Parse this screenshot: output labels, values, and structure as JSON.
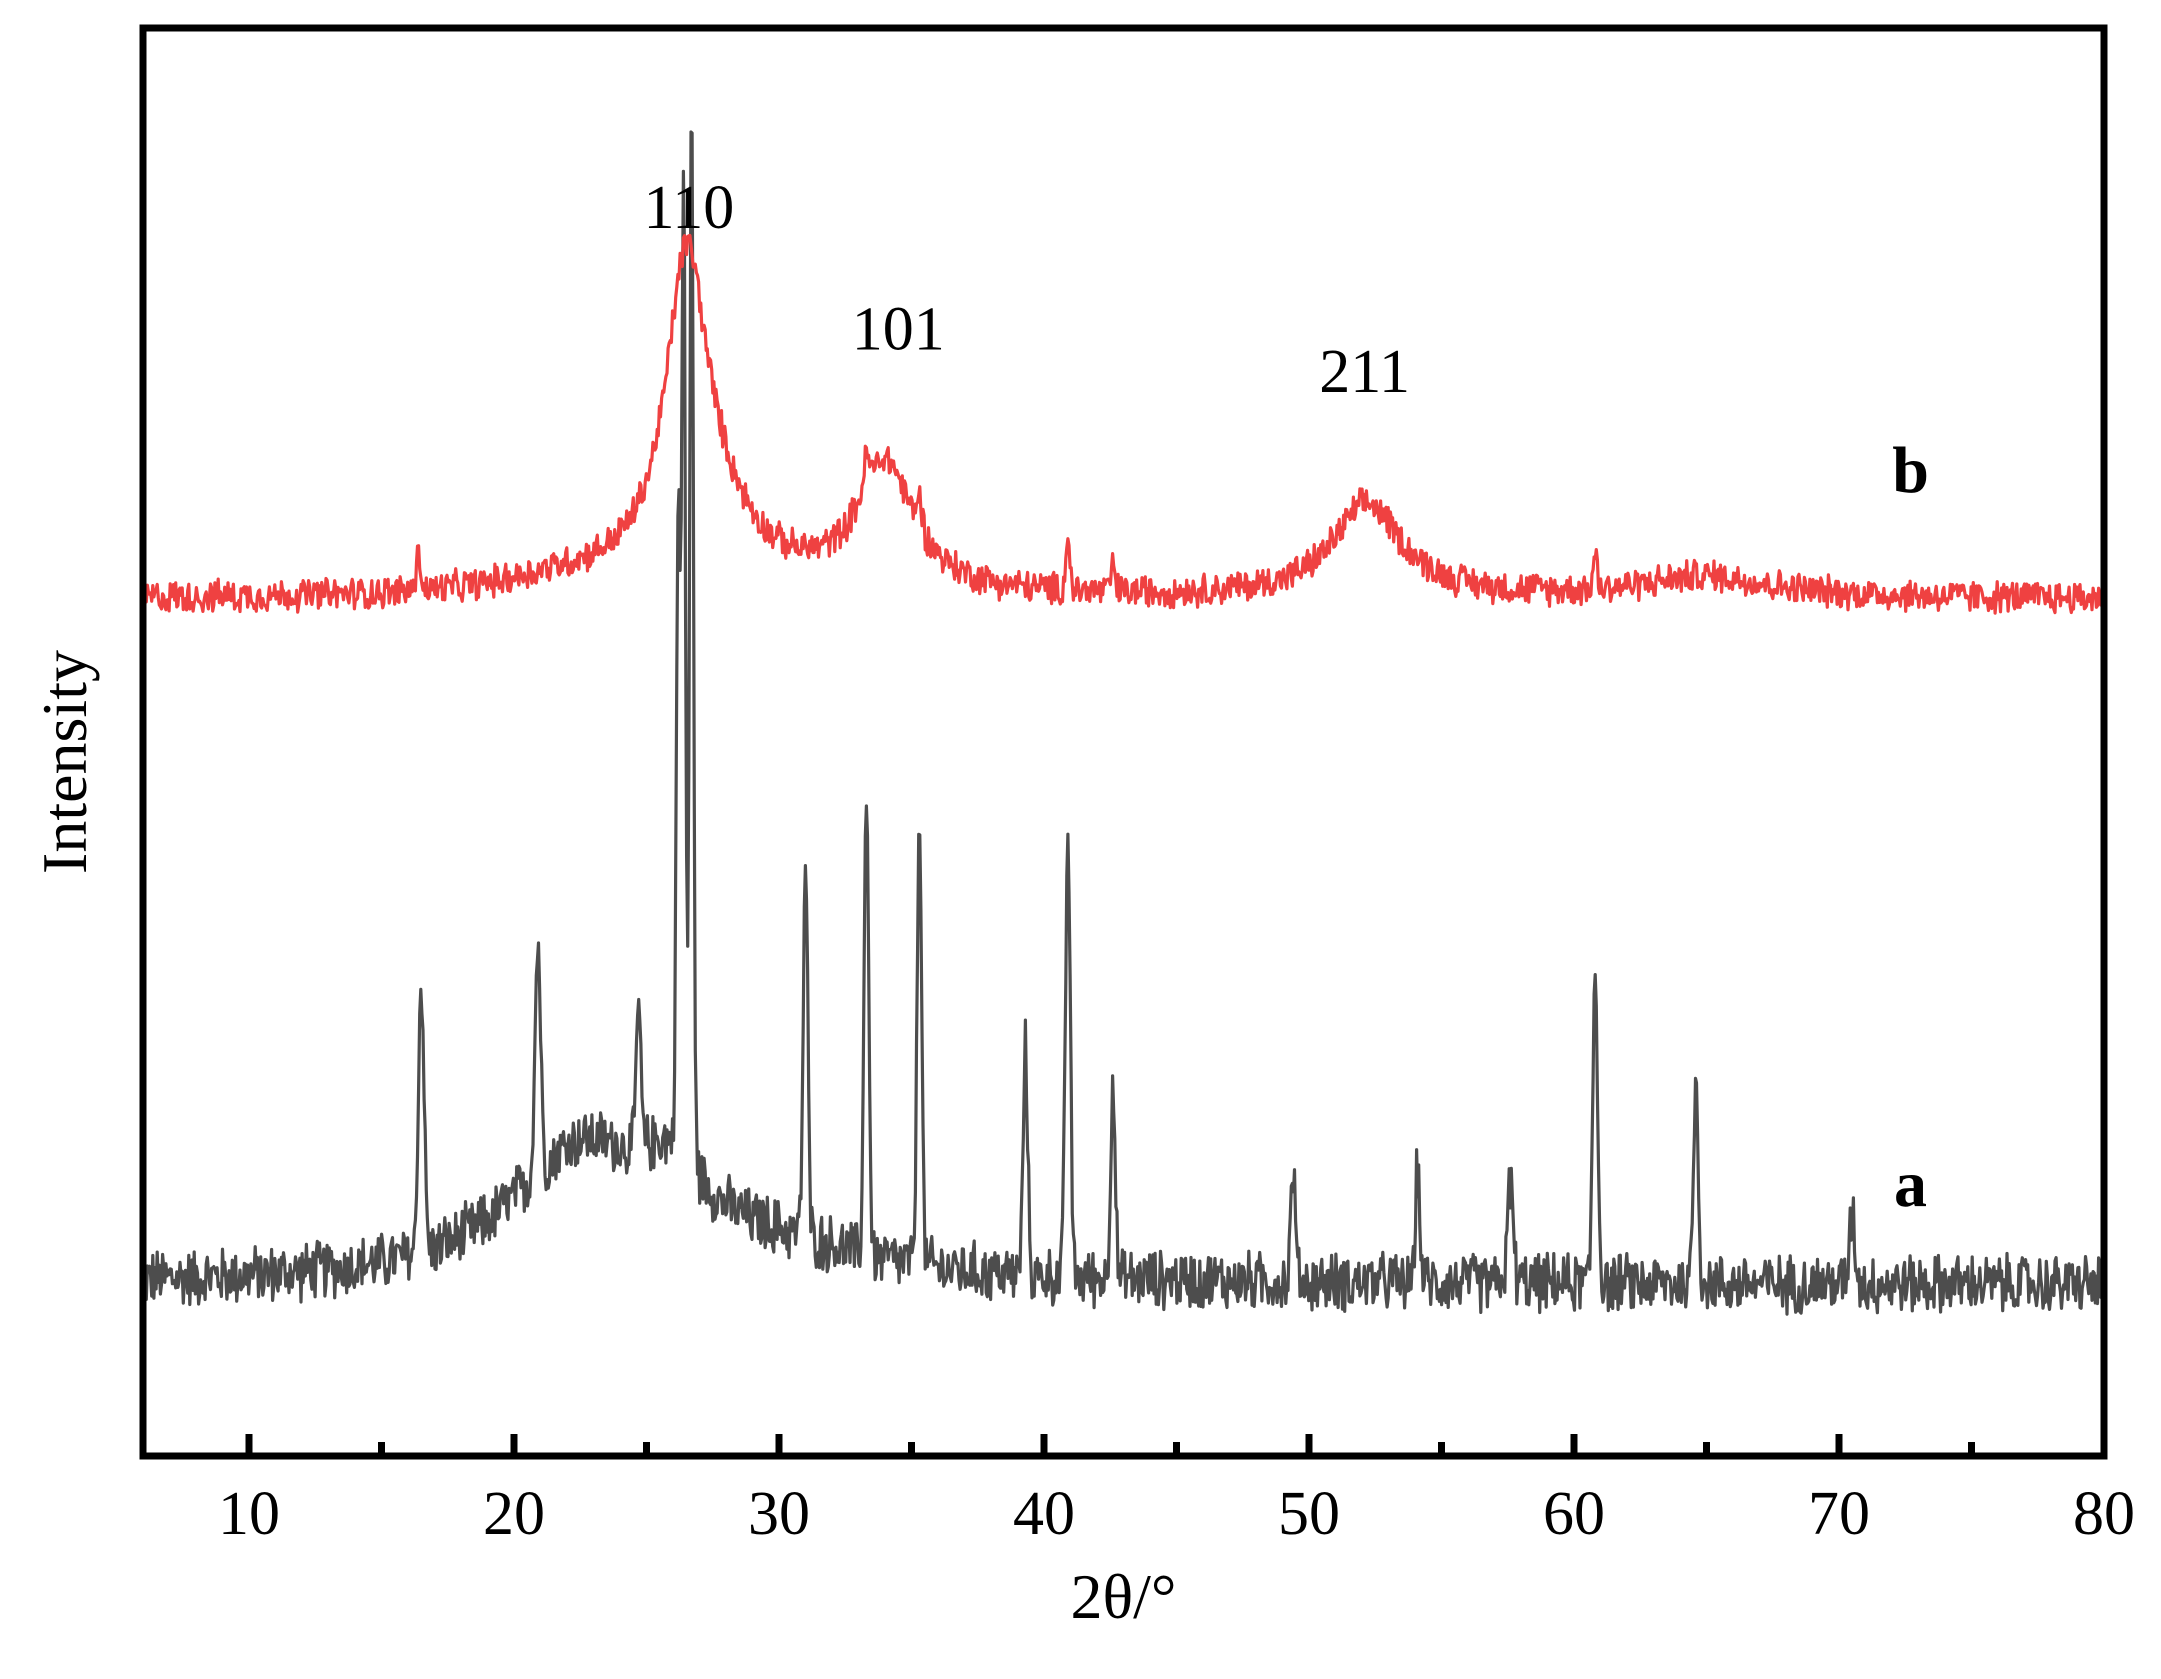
{
  "chart_data": {
    "type": "line",
    "xlabel": "2θ/°",
    "ylabel": "Intensity",
    "xlim": [
      6,
      80
    ],
    "xticks": [
      10,
      20,
      30,
      40,
      50,
      60,
      70,
      80
    ],
    "y_ticks_shown": false,
    "grid": false,
    "legend": "none",
    "series": [
      {
        "name": "a",
        "color": "#4d4d4d",
        "baseline": 0.12,
        "offset": 0.0,
        "noise": 0.018,
        "broad": [
          {
            "x": 22.5,
            "h": 0.09,
            "w": 3.2
          },
          {
            "x": 26.0,
            "h": 0.05,
            "w": 1.5
          },
          {
            "x": 30.0,
            "h": 0.02,
            "w": 4.0
          }
        ],
        "peaks": [
          {
            "x": 16.5,
            "h": 0.19,
            "w": 0.15
          },
          {
            "x": 20.9,
            "h": 0.16,
            "w": 0.15
          },
          {
            "x": 24.7,
            "h": 0.1,
            "w": 0.12
          },
          {
            "x": 26.2,
            "h": 0.45,
            "w": 0.1
          },
          {
            "x": 26.4,
            "h": 0.68,
            "w": 0.1
          },
          {
            "x": 26.7,
            "h": 0.74,
            "w": 0.1
          },
          {
            "x": 31.0,
            "h": 0.26,
            "w": 0.12
          },
          {
            "x": 33.3,
            "h": 0.33,
            "w": 0.12
          },
          {
            "x": 35.3,
            "h": 0.32,
            "w": 0.12
          },
          {
            "x": 39.3,
            "h": 0.16,
            "w": 0.12
          },
          {
            "x": 40.9,
            "h": 0.31,
            "w": 0.13
          },
          {
            "x": 42.6,
            "h": 0.14,
            "w": 0.12
          },
          {
            "x": 49.4,
            "h": 0.08,
            "w": 0.12
          },
          {
            "x": 54.1,
            "h": 0.08,
            "w": 0.12
          },
          {
            "x": 57.6,
            "h": 0.07,
            "w": 0.15
          },
          {
            "x": 60.8,
            "h": 0.22,
            "w": 0.13
          },
          {
            "x": 64.6,
            "h": 0.14,
            "w": 0.13
          },
          {
            "x": 70.5,
            "h": 0.05,
            "w": 0.15
          }
        ]
      },
      {
        "name": "b",
        "color": "#ef4141",
        "baseline": 0.6,
        "offset": 0.0,
        "noise": 0.01,
        "broad": [
          {
            "x": 26.5,
            "h": 0.19,
            "w": 0.9
          },
          {
            "x": 27.2,
            "h": 0.06,
            "w": 2.0
          },
          {
            "x": 34.0,
            "h": 0.09,
            "w": 1.3
          },
          {
            "x": 52.2,
            "h": 0.065,
            "w": 1.6
          },
          {
            "x": 65.0,
            "h": 0.015,
            "w": 3.0
          },
          {
            "x": 22.0,
            "h": 0.01,
            "w": 3.0
          }
        ],
        "peaks": [
          {
            "x": 16.4,
            "h": 0.025,
            "w": 0.12
          },
          {
            "x": 33.3,
            "h": 0.02,
            "w": 0.15
          },
          {
            "x": 35.3,
            "h": 0.02,
            "w": 0.15
          },
          {
            "x": 40.9,
            "h": 0.04,
            "w": 0.1
          },
          {
            "x": 42.6,
            "h": 0.02,
            "w": 0.1
          },
          {
            "x": 60.8,
            "h": 0.025,
            "w": 0.1
          }
        ]
      }
    ],
    "annotations": [
      {
        "text": "110",
        "x": 26.6,
        "series": "b"
      },
      {
        "text": "101",
        "x": 34.5,
        "series": "b"
      },
      {
        "text": "211",
        "x": 52.1,
        "series": "b"
      }
    ],
    "series_labels": [
      {
        "text": "b",
        "series": "b"
      },
      {
        "text": "a",
        "series": "a"
      }
    ]
  }
}
